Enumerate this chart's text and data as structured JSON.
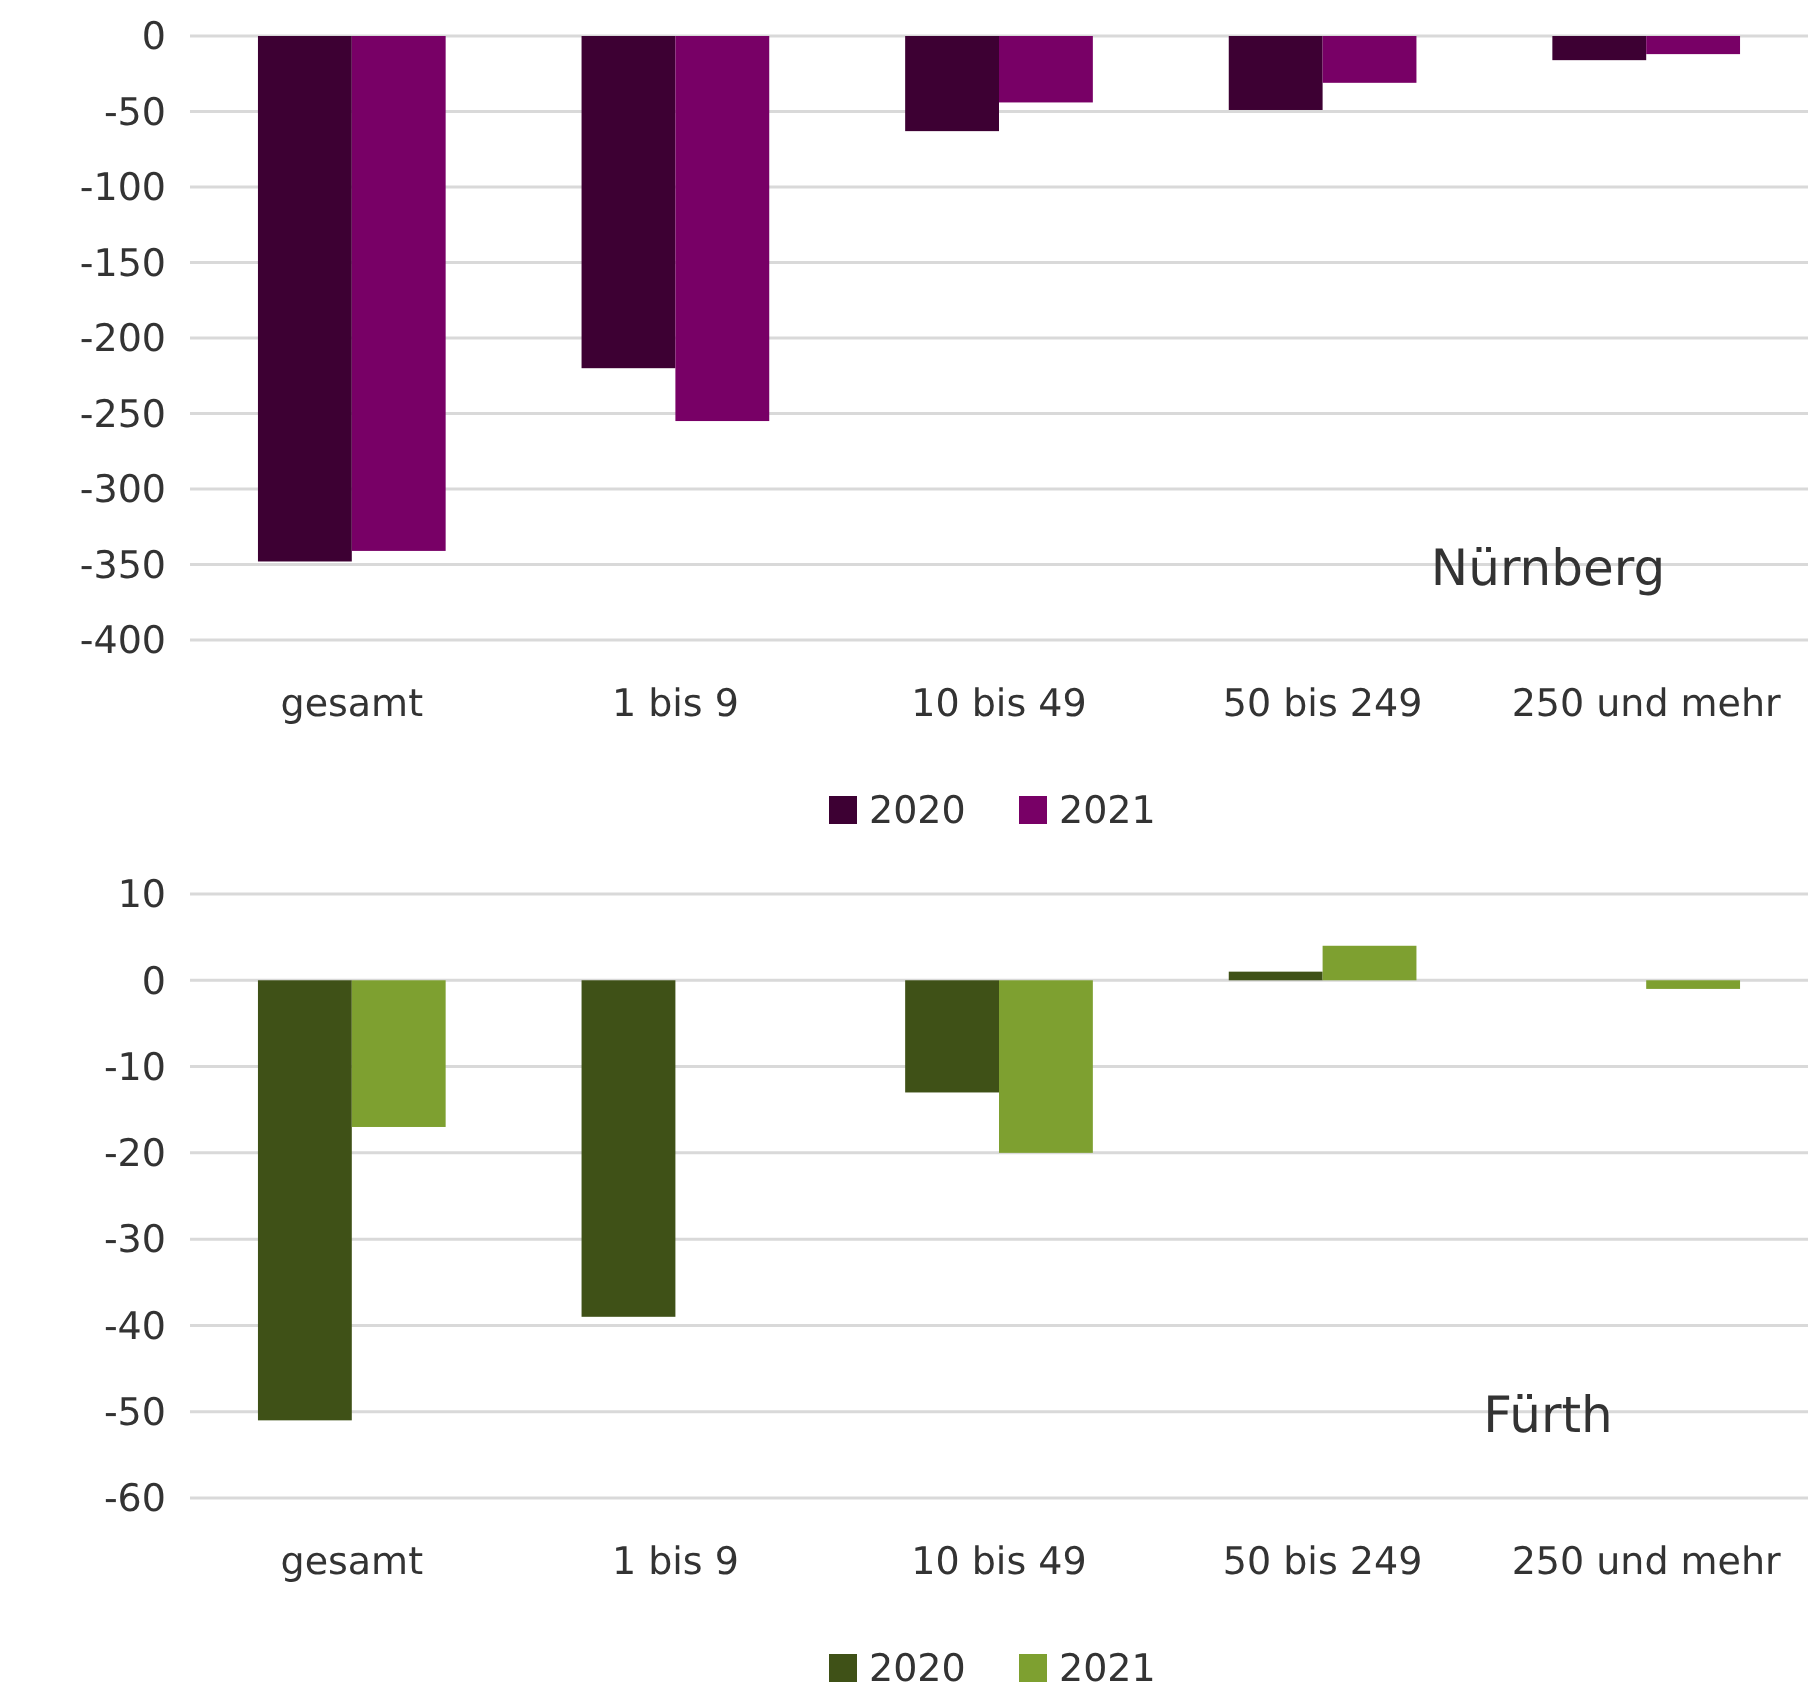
{
  "chart_data": [
    {
      "type": "bar",
      "categories": [
        "gesamt",
        "1 bis 9",
        "10 bis 49",
        "50 bis 249",
        "250 und mehr"
      ],
      "series": [
        {
          "name": "2020",
          "color": "#3d0033",
          "values": [
            -348,
            -220,
            -63,
            -49,
            -16
          ]
        },
        {
          "name": "2021",
          "color": "#780066",
          "values": [
            -341,
            -255,
            -44,
            -31,
            -12
          ]
        }
      ],
      "ylim": [
        -400,
        0
      ],
      "yticks": [
        0,
        -50,
        -100,
        -150,
        -200,
        -250,
        -300,
        -350,
        -400
      ],
      "grid": "y",
      "legend": "bottom",
      "annotations": [
        "Nürnberg"
      ]
    },
    {
      "type": "bar",
      "categories": [
        "gesamt",
        "1 bis 9",
        "10 bis 49",
        "50 bis 249",
        "250 und mehr"
      ],
      "series": [
        {
          "name": "2020",
          "color": "#3f5117",
          "values": [
            -51,
            -39,
            -13,
            1,
            0
          ]
        },
        {
          "name": "2021",
          "color": "#7ea030",
          "values": [
            -17,
            0,
            -20,
            4,
            -1
          ]
        }
      ],
      "ylim": [
        -60,
        10
      ],
      "yticks": [
        10,
        0,
        -10,
        -20,
        -30,
        -40,
        -50,
        -60
      ],
      "grid": "y",
      "legend": "bottom",
      "annotations": [
        "Fürth"
      ]
    }
  ]
}
